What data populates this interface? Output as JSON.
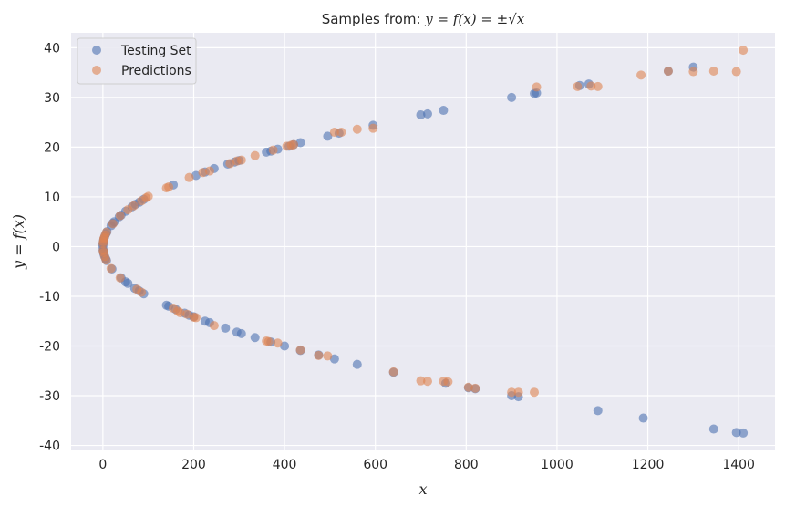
{
  "chart_data": {
    "type": "scatter",
    "title_prefix": "Samples from: ",
    "title_math": "y = f(x) = ±√x",
    "xlabel": "x",
    "ylabel": "y = f(x)",
    "xlim": [
      -70,
      1480
    ],
    "ylim": [
      -41,
      43
    ],
    "xticks": [
      0,
      200,
      400,
      600,
      800,
      1000,
      1200,
      1400
    ],
    "yticks": [
      -40,
      -30,
      -20,
      -10,
      0,
      10,
      20,
      30,
      40
    ],
    "grid": true,
    "legend_placement": "top-left",
    "series": [
      {
        "name": "Testing Set",
        "color": "#4C72B0",
        "points": [
          [
            0,
            0.0
          ],
          [
            0.3,
            0.5
          ],
          [
            0.7,
            0.8
          ],
          [
            1.5,
            1.2
          ],
          [
            2.5,
            1.6
          ],
          [
            4,
            2
          ],
          [
            7,
            2.6
          ],
          [
            9,
            3
          ],
          [
            0.5,
            -0.7
          ],
          [
            1,
            -1
          ],
          [
            2,
            -1.4
          ],
          [
            3.5,
            -1.9
          ],
          [
            6,
            -2.4
          ],
          [
            8,
            -2.8
          ],
          [
            18,
            4.2
          ],
          [
            22,
            4.7
          ],
          [
            25,
            5
          ],
          [
            36,
            6
          ],
          [
            40,
            6.3
          ],
          [
            50,
            7.1
          ],
          [
            64,
            8
          ],
          [
            72,
            8.5
          ],
          [
            80,
            8.9
          ],
          [
            90,
            9.5
          ],
          [
            155,
            12.4
          ],
          [
            205,
            14.3
          ],
          [
            225,
            15
          ],
          [
            245,
            15.7
          ],
          [
            275,
            16.6
          ],
          [
            290,
            17
          ],
          [
            300,
            17.3
          ],
          [
            360,
            19
          ],
          [
            370,
            19.2
          ],
          [
            385,
            19.6
          ],
          [
            410,
            20.2
          ],
          [
            420,
            20.5
          ],
          [
            435,
            20.9
          ],
          [
            495,
            22.2
          ],
          [
            520,
            22.8
          ],
          [
            595,
            24.4
          ],
          [
            700,
            26.5
          ],
          [
            715,
            26.7
          ],
          [
            750,
            27.4
          ],
          [
            900,
            30
          ],
          [
            950,
            30.8
          ],
          [
            955,
            30.9
          ],
          [
            1050,
            32.4
          ],
          [
            1070,
            32.7
          ],
          [
            1245,
            35.3
          ],
          [
            1300,
            36.1
          ],
          [
            20,
            -4.5
          ],
          [
            40,
            -6.3
          ],
          [
            50,
            -7.1
          ],
          [
            55,
            -7.4
          ],
          [
            70,
            -8.4
          ],
          [
            80,
            -8.9
          ],
          [
            90,
            -9.5
          ],
          [
            140,
            -11.8
          ],
          [
            145,
            -12
          ],
          [
            160,
            -12.6
          ],
          [
            180,
            -13.4
          ],
          [
            190,
            -13.8
          ],
          [
            200,
            -14.1
          ],
          [
            225,
            -15
          ],
          [
            235,
            -15.3
          ],
          [
            270,
            -16.4
          ],
          [
            295,
            -17.2
          ],
          [
            305,
            -17.5
          ],
          [
            335,
            -18.3
          ],
          [
            370,
            -19.2
          ],
          [
            400,
            -20
          ],
          [
            435,
            -20.9
          ],
          [
            475,
            -21.8
          ],
          [
            510,
            -22.6
          ],
          [
            560,
            -23.7
          ],
          [
            640,
            -25.3
          ],
          [
            755,
            -27.5
          ],
          [
            805,
            -28.4
          ],
          [
            820,
            -28.6
          ],
          [
            900,
            -30
          ],
          [
            915,
            -30.2
          ],
          [
            1090,
            -33
          ],
          [
            1190,
            -34.5
          ],
          [
            1345,
            -36.7
          ],
          [
            1395,
            -37.4
          ],
          [
            1410,
            -37.5
          ]
        ]
      },
      {
        "name": "Predictions",
        "color": "#DD8452",
        "points": [
          [
            0.4,
            0.6
          ],
          [
            1,
            1
          ],
          [
            2,
            1.5
          ],
          [
            3,
            1.8
          ],
          [
            5,
            2.3
          ],
          [
            8,
            2.9
          ],
          [
            0.6,
            -0.8
          ],
          [
            1.5,
            -1.2
          ],
          [
            4,
            -2
          ],
          [
            7,
            -2.7
          ],
          [
            22,
            4.6
          ],
          [
            38,
            6.2
          ],
          [
            55,
            7.4
          ],
          [
            68,
            8.2
          ],
          [
            85,
            9.2
          ],
          [
            95,
            9.8
          ],
          [
            100,
            10.1
          ],
          [
            140,
            11.8
          ],
          [
            145,
            12
          ],
          [
            190,
            13.9
          ],
          [
            220,
            14.9
          ],
          [
            235,
            15.2
          ],
          [
            280,
            16.7
          ],
          [
            295,
            17.2
          ],
          [
            305,
            17.4
          ],
          [
            335,
            18.3
          ],
          [
            375,
            19.4
          ],
          [
            405,
            20.2
          ],
          [
            415,
            20.4
          ],
          [
            420,
            20.5
          ],
          [
            510,
            23
          ],
          [
            525,
            23
          ],
          [
            560,
            23.6
          ],
          [
            595,
            23.8
          ],
          [
            955,
            32.1
          ],
          [
            1045,
            32.2
          ],
          [
            1075,
            32.3
          ],
          [
            1090,
            32.2
          ],
          [
            1185,
            34.5
          ],
          [
            1245,
            35.3
          ],
          [
            1300,
            35.2
          ],
          [
            1345,
            35.3
          ],
          [
            1395,
            35.2
          ],
          [
            1410,
            39.5
          ],
          [
            18,
            -4.4
          ],
          [
            38,
            -6.3
          ],
          [
            75,
            -8.6
          ],
          [
            85,
            -9.2
          ],
          [
            155,
            -12.4
          ],
          [
            165,
            -13
          ],
          [
            170,
            -13.3
          ],
          [
            185,
            -13.6
          ],
          [
            200,
            -14.2
          ],
          [
            205,
            -14.3
          ],
          [
            245,
            -15.9
          ],
          [
            360,
            -19
          ],
          [
            365,
            -19.1
          ],
          [
            385,
            -19.4
          ],
          [
            435,
            -20.8
          ],
          [
            475,
            -21.9
          ],
          [
            495,
            -22
          ],
          [
            640,
            -25.2
          ],
          [
            700,
            -27
          ],
          [
            715,
            -27.1
          ],
          [
            750,
            -27.1
          ],
          [
            760,
            -27.2
          ],
          [
            805,
            -28.3
          ],
          [
            820,
            -28.5
          ],
          [
            900,
            -29.3
          ],
          [
            915,
            -29.3
          ],
          [
            950,
            -29.3
          ]
        ]
      }
    ]
  }
}
